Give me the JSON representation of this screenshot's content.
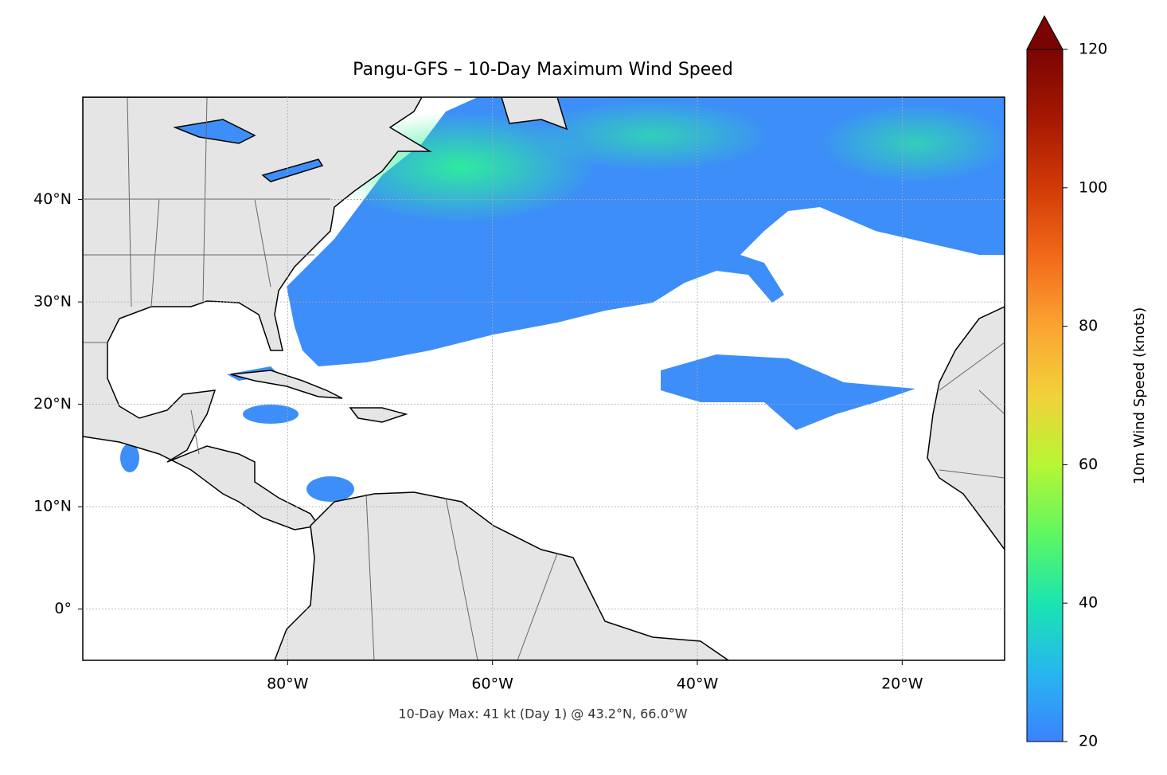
{
  "chart_data": {
    "type": "map",
    "title": "Pangu-GFS – 10-Day Maximum Wind Speed",
    "annotation": "10-Day Max: 41 kt (Day 1) @ 43.2°N, 66.0°W",
    "xlim": [
      -100,
      -10
    ],
    "ylim": [
      -5,
      50
    ],
    "xticks": [
      {
        "value": -80,
        "label": "80°W"
      },
      {
        "value": -60,
        "label": "60°W"
      },
      {
        "value": -40,
        "label": "40°W"
      },
      {
        "value": -20,
        "label": "20°W"
      }
    ],
    "yticks": [
      {
        "value": 0,
        "label": "0°"
      },
      {
        "value": 10,
        "label": "10°N"
      },
      {
        "value": 20,
        "label": "20°N"
      },
      {
        "value": 30,
        "label": "30°N"
      },
      {
        "value": 40,
        "label": "40°N"
      }
    ],
    "grid": true,
    "colorbar": {
      "label": "10m Wind Speed (knots)",
      "lim": [
        20,
        120
      ],
      "ticks": [
        20,
        40,
        60,
        80,
        100,
        120
      ]
    }
  }
}
